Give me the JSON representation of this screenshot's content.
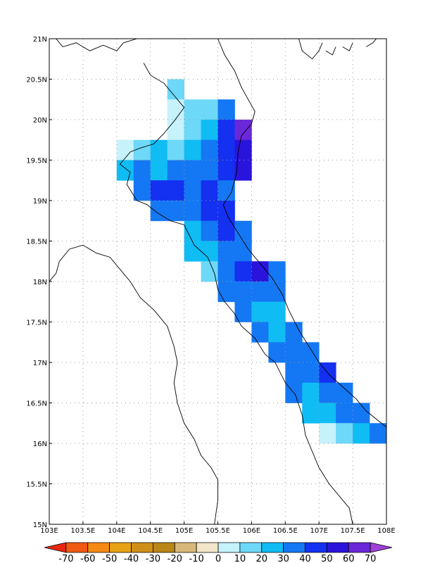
{
  "map": {
    "lon_range": [
      103,
      108
    ],
    "lat_range": [
      15,
      21
    ],
    "grid_step_deg": 0.5,
    "gridlines": true,
    "x_tick_labels": [
      "103E",
      "103.5E",
      "104E",
      "104.5E",
      "105E",
      "105.5E",
      "106E",
      "106.5E",
      "107E",
      "107.5E",
      "108E"
    ],
    "y_tick_labels": [
      "15N",
      "15.5N",
      "16N",
      "16.5N",
      "17N",
      "17.5N",
      "18N",
      "18.5N",
      "19N",
      "19.5N",
      "20N",
      "20.5N",
      "21N"
    ]
  },
  "colorbar": {
    "labels": [
      "-70",
      "-60",
      "-50",
      "-40",
      "-30",
      "-20",
      "-10",
      "0",
      "10",
      "20",
      "30",
      "40",
      "50",
      "60",
      "70"
    ],
    "colors": [
      "#e8270f",
      "#f05a12",
      "#f58a12",
      "#e8a214",
      "#d09018",
      "#b98618",
      "#d8b87a",
      "#f2e6c8",
      "#c6f2fc",
      "#6ed8f8",
      "#10bcf4",
      "#1478f4",
      "#1430f0",
      "#2a14dc",
      "#6a28d8",
      "#a040d8"
    ]
  },
  "chart_data": {
    "type": "heatmap",
    "cell_size_deg": 0.25,
    "x_unit": "longitude (°E)",
    "y_unit": "latitude (°N)",
    "values_note": "v = lower bound of colour bin",
    "cells": [
      {
        "lon": 104.875,
        "lat": 20.375,
        "v": 10
      },
      {
        "lon": 104.875,
        "lat": 20.125,
        "v": 0
      },
      {
        "lon": 105.125,
        "lat": 20.125,
        "v": 10
      },
      {
        "lon": 105.375,
        "lat": 20.125,
        "v": 10
      },
      {
        "lon": 105.625,
        "lat": 20.125,
        "v": 30
      },
      {
        "lon": 104.875,
        "lat": 19.875,
        "v": 0
      },
      {
        "lon": 105.125,
        "lat": 19.875,
        "v": 10
      },
      {
        "lon": 105.375,
        "lat": 19.875,
        "v": 20
      },
      {
        "lon": 105.625,
        "lat": 19.875,
        "v": 40
      },
      {
        "lon": 105.875,
        "lat": 19.875,
        "v": 60
      },
      {
        "lon": 104.125,
        "lat": 19.625,
        "v": 0
      },
      {
        "lon": 104.375,
        "lat": 19.625,
        "v": 10
      },
      {
        "lon": 104.625,
        "lat": 19.625,
        "v": 20
      },
      {
        "lon": 104.875,
        "lat": 19.625,
        "v": 10
      },
      {
        "lon": 105.125,
        "lat": 19.625,
        "v": 20
      },
      {
        "lon": 105.375,
        "lat": 19.625,
        "v": 30
      },
      {
        "lon": 105.625,
        "lat": 19.625,
        "v": 40
      },
      {
        "lon": 105.875,
        "lat": 19.625,
        "v": 50
      },
      {
        "lon": 104.125,
        "lat": 19.375,
        "v": 20
      },
      {
        "lon": 104.375,
        "lat": 19.375,
        "v": 30
      },
      {
        "lon": 104.625,
        "lat": 19.375,
        "v": 20
      },
      {
        "lon": 104.875,
        "lat": 19.375,
        "v": 30
      },
      {
        "lon": 105.125,
        "lat": 19.375,
        "v": 30
      },
      {
        "lon": 105.375,
        "lat": 19.375,
        "v": 30
      },
      {
        "lon": 105.625,
        "lat": 19.375,
        "v": 40
      },
      {
        "lon": 105.875,
        "lat": 19.375,
        "v": 50
      },
      {
        "lon": 104.375,
        "lat": 19.125,
        "v": 30
      },
      {
        "lon": 104.625,
        "lat": 19.125,
        "v": 40
      },
      {
        "lon": 104.875,
        "lat": 19.125,
        "v": 40
      },
      {
        "lon": 105.125,
        "lat": 19.125,
        "v": 30
      },
      {
        "lon": 105.375,
        "lat": 19.125,
        "v": 40
      },
      {
        "lon": 105.625,
        "lat": 19.125,
        "v": 30
      },
      {
        "lon": 104.625,
        "lat": 18.875,
        "v": 30
      },
      {
        "lon": 104.875,
        "lat": 18.875,
        "v": 30
      },
      {
        "lon": 105.125,
        "lat": 18.875,
        "v": 30
      },
      {
        "lon": 105.375,
        "lat": 18.875,
        "v": 40
      },
      {
        "lon": 105.625,
        "lat": 18.875,
        "v": 40
      },
      {
        "lon": 105.125,
        "lat": 18.625,
        "v": 20
      },
      {
        "lon": 105.375,
        "lat": 18.625,
        "v": 30
      },
      {
        "lon": 105.625,
        "lat": 18.625,
        "v": 40
      },
      {
        "lon": 105.875,
        "lat": 18.625,
        "v": 30
      },
      {
        "lon": 105.125,
        "lat": 18.375,
        "v": 20
      },
      {
        "lon": 105.375,
        "lat": 18.375,
        "v": 20
      },
      {
        "lon": 105.625,
        "lat": 18.375,
        "v": 30
      },
      {
        "lon": 105.875,
        "lat": 18.375,
        "v": 30
      },
      {
        "lon": 105.375,
        "lat": 18.125,
        "v": 10
      },
      {
        "lon": 105.625,
        "lat": 18.125,
        "v": 30
      },
      {
        "lon": 105.875,
        "lat": 18.125,
        "v": 40
      },
      {
        "lon": 106.125,
        "lat": 18.125,
        "v": 50
      },
      {
        "lon": 106.375,
        "lat": 18.125,
        "v": 30
      },
      {
        "lon": 105.625,
        "lat": 17.875,
        "v": 30
      },
      {
        "lon": 105.875,
        "lat": 17.875,
        "v": 30
      },
      {
        "lon": 106.125,
        "lat": 17.875,
        "v": 30
      },
      {
        "lon": 106.375,
        "lat": 17.875,
        "v": 30
      },
      {
        "lon": 105.875,
        "lat": 17.625,
        "v": 30
      },
      {
        "lon": 106.125,
        "lat": 17.625,
        "v": 20
      },
      {
        "lon": 106.375,
        "lat": 17.625,
        "v": 20
      },
      {
        "lon": 106.125,
        "lat": 17.375,
        "v": 30
      },
      {
        "lon": 106.375,
        "lat": 17.375,
        "v": 20
      },
      {
        "lon": 106.625,
        "lat": 17.375,
        "v": 30
      },
      {
        "lon": 106.375,
        "lat": 17.125,
        "v": 30
      },
      {
        "lon": 106.625,
        "lat": 17.125,
        "v": 30
      },
      {
        "lon": 106.875,
        "lat": 17.125,
        "v": 30
      },
      {
        "lon": 106.625,
        "lat": 16.875,
        "v": 30
      },
      {
        "lon": 106.875,
        "lat": 16.875,
        "v": 30
      },
      {
        "lon": 107.125,
        "lat": 16.875,
        "v": 40
      },
      {
        "lon": 106.625,
        "lat": 16.625,
        "v": 30
      },
      {
        "lon": 106.875,
        "lat": 16.625,
        "v": 20
      },
      {
        "lon": 107.125,
        "lat": 16.625,
        "v": 30
      },
      {
        "lon": 107.375,
        "lat": 16.625,
        "v": 30
      },
      {
        "lon": 106.875,
        "lat": 16.375,
        "v": 20
      },
      {
        "lon": 107.125,
        "lat": 16.375,
        "v": 20
      },
      {
        "lon": 107.375,
        "lat": 16.375,
        "v": 30
      },
      {
        "lon": 107.625,
        "lat": 16.375,
        "v": 30
      },
      {
        "lon": 107.125,
        "lat": 16.125,
        "v": 0
      },
      {
        "lon": 107.375,
        "lat": 16.125,
        "v": 10
      },
      {
        "lon": 107.625,
        "lat": 16.125,
        "v": 20
      },
      {
        "lon": 107.875,
        "lat": 16.125,
        "v": 30
      }
    ],
    "coastline": [
      [
        [
          103.1,
          21.0
        ],
        [
          103.2,
          20.9
        ],
        [
          103.4,
          20.95
        ],
        [
          103.6,
          20.85
        ],
        [
          103.8,
          20.92
        ],
        [
          104.0,
          20.85
        ],
        [
          104.1,
          20.95
        ],
        [
          104.3,
          21.0
        ]
      ],
      [
        [
          104.4,
          20.7
        ],
        [
          104.5,
          20.55
        ],
        [
          104.7,
          20.45
        ],
        [
          104.85,
          20.3
        ],
        [
          105.0,
          20.15
        ],
        [
          104.85,
          19.98
        ],
        [
          104.7,
          19.83
        ],
        [
          104.55,
          19.7
        ],
        [
          104.35,
          19.65
        ],
        [
          104.2,
          19.6
        ],
        [
          104.1,
          19.5
        ],
        [
          104.05,
          19.45
        ],
        [
          104.2,
          19.35
        ],
        [
          104.15,
          19.2
        ],
        [
          104.3,
          19.0
        ],
        [
          104.45,
          18.95
        ],
        [
          104.6,
          18.85
        ],
        [
          104.8,
          18.75
        ],
        [
          105.0,
          18.7
        ],
        [
          105.15,
          18.45
        ],
        [
          105.35,
          18.3
        ],
        [
          105.45,
          18.1
        ],
        [
          105.5,
          17.9
        ],
        [
          105.6,
          17.75
        ],
        [
          105.75,
          17.6
        ],
        [
          105.85,
          17.45
        ],
        [
          106.05,
          17.3
        ],
        [
          106.2,
          17.1
        ],
        [
          106.35,
          17.0
        ],
        [
          106.5,
          16.75
        ],
        [
          106.65,
          16.6
        ],
        [
          106.75,
          16.35
        ],
        [
          106.8,
          16.1
        ],
        [
          106.9,
          15.9
        ],
        [
          107.0,
          15.7
        ],
        [
          107.15,
          15.5
        ],
        [
          107.3,
          15.35
        ],
        [
          107.45,
          15.2
        ],
        [
          107.5,
          15.0
        ]
      ],
      [
        [
          103.0,
          18.0
        ],
        [
          103.1,
          18.1
        ],
        [
          103.15,
          18.25
        ],
        [
          103.3,
          18.4
        ],
        [
          103.5,
          18.45
        ],
        [
          103.7,
          18.35
        ],
        [
          103.9,
          18.3
        ],
        [
          104.05,
          18.15
        ],
        [
          104.2,
          18.0
        ],
        [
          104.35,
          17.8
        ],
        [
          104.55,
          17.65
        ],
        [
          104.75,
          17.45
        ],
        [
          104.85,
          17.2
        ],
        [
          104.9,
          17.0
        ],
        [
          104.85,
          16.75
        ],
        [
          104.9,
          16.5
        ],
        [
          105.0,
          16.25
        ],
        [
          105.15,
          16.05
        ],
        [
          105.25,
          15.85
        ],
        [
          105.4,
          15.7
        ],
        [
          105.5,
          15.55
        ],
        [
          105.5,
          15.3
        ],
        [
          105.45,
          15.0
        ]
      ],
      [
        [
          105.5,
          21.0
        ],
        [
          105.6,
          20.8
        ],
        [
          105.75,
          20.6
        ],
        [
          105.85,
          20.4
        ],
        [
          105.95,
          20.25
        ],
        [
          106.05,
          20.1
        ],
        [
          106.0,
          19.95
        ],
        [
          105.85,
          19.8
        ],
        [
          105.8,
          19.6
        ],
        [
          105.78,
          19.35
        ],
        [
          105.7,
          19.1
        ],
        [
          105.58,
          18.95
        ],
        [
          105.65,
          18.8
        ],
        [
          105.8,
          18.6
        ],
        [
          105.95,
          18.4
        ],
        [
          106.1,
          18.25
        ],
        [
          106.3,
          18.05
        ],
        [
          106.45,
          17.85
        ],
        [
          106.55,
          17.65
        ],
        [
          106.7,
          17.4
        ],
        [
          106.85,
          17.2
        ],
        [
          107.0,
          17.0
        ],
        [
          107.15,
          16.85
        ],
        [
          107.35,
          16.7
        ],
        [
          107.55,
          16.55
        ],
        [
          107.7,
          16.4
        ],
        [
          107.85,
          16.3
        ],
        [
          108.0,
          16.2
        ]
      ],
      [
        [
          106.7,
          21.0
        ],
        [
          106.75,
          20.85
        ],
        [
          106.9,
          20.75
        ],
        [
          107.0,
          20.85
        ],
        [
          107.05,
          20.95
        ]
      ],
      [
        [
          107.1,
          20.85
        ],
        [
          107.2,
          20.8
        ],
        [
          107.25,
          20.9
        ]
      ],
      [
        [
          107.35,
          20.9
        ],
        [
          107.45,
          20.85
        ],
        [
          107.5,
          20.95
        ]
      ],
      [
        [
          107.7,
          20.9
        ],
        [
          107.8,
          20.95
        ],
        [
          107.85,
          21.0
        ]
      ]
    ]
  }
}
